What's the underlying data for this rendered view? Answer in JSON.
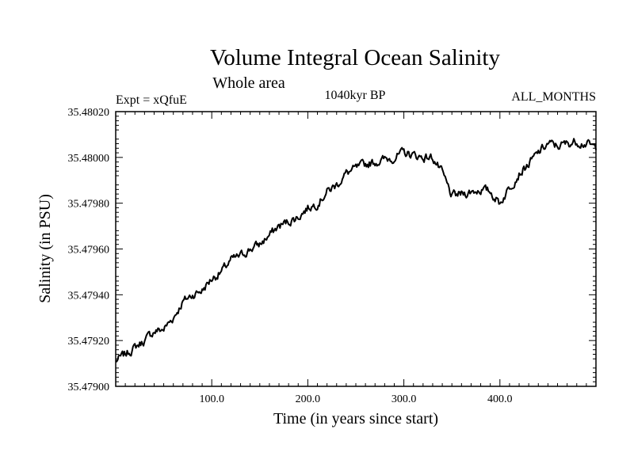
{
  "chart_data": {
    "type": "line",
    "title": "Volume Integral Ocean Salinity",
    "subtitle": "Whole area",
    "experiment": "Expt = xQfuE",
    "period": "1040kyr BP",
    "months": "ALL_MONTHS",
    "xlabel": "Time (in years since start)",
    "ylabel": "Salinity (in PSU)",
    "xlim": [
      0,
      500
    ],
    "ylim": [
      35.479,
      35.4802
    ],
    "x_ticks": [
      {
        "value": 100,
        "label": "100.0"
      },
      {
        "value": 200,
        "label": "200.0"
      },
      {
        "value": 300,
        "label": "300.0"
      },
      {
        "value": 400,
        "label": "400.0"
      }
    ],
    "y_ticks": [
      {
        "value": 35.479,
        "label": "35.47900"
      },
      {
        "value": 35.4792,
        "label": "35.47920"
      },
      {
        "value": 35.4794,
        "label": "35.47940"
      },
      {
        "value": 35.4796,
        "label": "35.47960"
      },
      {
        "value": 35.4798,
        "label": "35.47980"
      },
      {
        "value": 35.48,
        "label": "35.48000"
      },
      {
        "value": 35.4802,
        "label": "35.48020"
      }
    ],
    "grid": false,
    "series": [
      {
        "name": "salinity",
        "x": [
          0,
          10,
          20,
          30,
          40,
          50,
          60,
          70,
          80,
          90,
          100,
          110,
          120,
          130,
          140,
          150,
          160,
          170,
          180,
          190,
          200,
          210,
          220,
          230,
          240,
          250,
          260,
          270,
          280,
          290,
          300,
          310,
          320,
          330,
          340,
          350,
          360,
          370,
          380,
          390,
          400,
          410,
          420,
          430,
          440,
          450,
          460,
          470,
          480,
          490,
          500
        ],
        "values": [
          35.47911,
          35.47914,
          35.47917,
          35.4792,
          35.47924,
          35.47925,
          35.4793,
          35.47937,
          35.4794,
          35.47942,
          35.47947,
          35.4795,
          35.47955,
          35.47957,
          35.4796,
          35.47962,
          35.47966,
          35.4797,
          35.47972,
          35.47974,
          35.47978,
          35.4798,
          35.47985,
          35.47988,
          35.47993,
          35.47995,
          35.47997,
          35.47998,
          35.47999,
          35.48,
          35.48002,
          35.48001,
          35.48,
          35.48,
          35.47993,
          35.47983,
          35.47984,
          35.47985,
          35.47986,
          35.47985,
          35.4798,
          35.47987,
          35.47993,
          35.47997,
          35.48002,
          35.48006,
          35.48005,
          35.48006,
          35.48007,
          35.48006,
          35.48004
        ]
      }
    ]
  }
}
